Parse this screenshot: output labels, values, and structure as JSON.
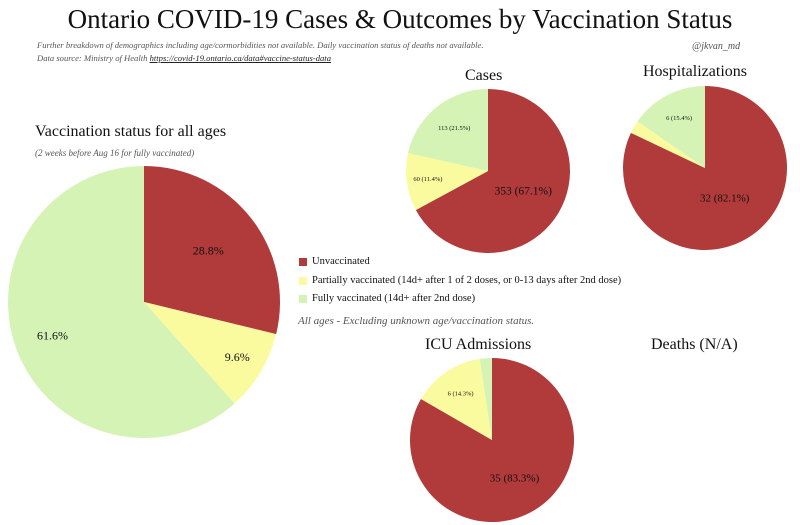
{
  "title": "Ontario COVID-19 Cases & Outcomes by Vaccination Status",
  "note_line1": "Further breakdown of demographics including age/cormorbidities not available. Daily vaccination status of deaths not available.",
  "note_line2_prefix": "Data source: Ministry of Health ",
  "note_line2_link": "https://covid-19.ontario.ca/data#vaccine-status-data",
  "handle": "@jkvan_md",
  "colors": {
    "unvaccinated": "#b13a3a",
    "partially": "#fafa9f",
    "fully": "#d6f3b6"
  },
  "legend": {
    "unvaccinated": "Unvaccinated",
    "partially": "Partially vaccinated (14d+ after 1 of 2 doses, or 0-13 days after 2nd dose)",
    "fully": "Fully vaccinated (14d+ after 2nd dose)",
    "note": "All ages - Excluding unknown age/vaccination status."
  },
  "deaths_title": "Deaths (N/A)",
  "chart_data": [
    {
      "id": "all-ages",
      "type": "pie",
      "title": "Vaccination status for all ages",
      "subtitle": "(2 weeks before Aug 16 for fully vaccinated)",
      "categories": [
        "Unvaccinated",
        "Partially vaccinated",
        "Fully vaccinated"
      ],
      "values": [
        28.8,
        9.6,
        61.6
      ],
      "labels": [
        "28.8%",
        "9.6%",
        "61.6%"
      ]
    },
    {
      "id": "cases",
      "type": "pie",
      "title": "Cases",
      "categories": [
        "Unvaccinated",
        "Partially vaccinated",
        "Fully vaccinated"
      ],
      "values": [
        353,
        60,
        113
      ],
      "labels": [
        "353 (67.1%)",
        "60 (11.4%)",
        "113 (21.5%)"
      ]
    },
    {
      "id": "hospitalizations",
      "type": "pie",
      "title": "Hospitalizations",
      "categories": [
        "Unvaccinated",
        "Partially vaccinated",
        "Fully vaccinated"
      ],
      "values": [
        32,
        1,
        6
      ],
      "labels": [
        "32 (82.1%)",
        "",
        "6 (15.4%)"
      ]
    },
    {
      "id": "icu",
      "type": "pie",
      "title": "ICU Admissions",
      "categories": [
        "Unvaccinated",
        "Partially vaccinated",
        "Fully vaccinated"
      ],
      "values": [
        35,
        6,
        1
      ],
      "labels": [
        "35 (83.3%)",
        "6 (14.3%)",
        ""
      ]
    }
  ]
}
